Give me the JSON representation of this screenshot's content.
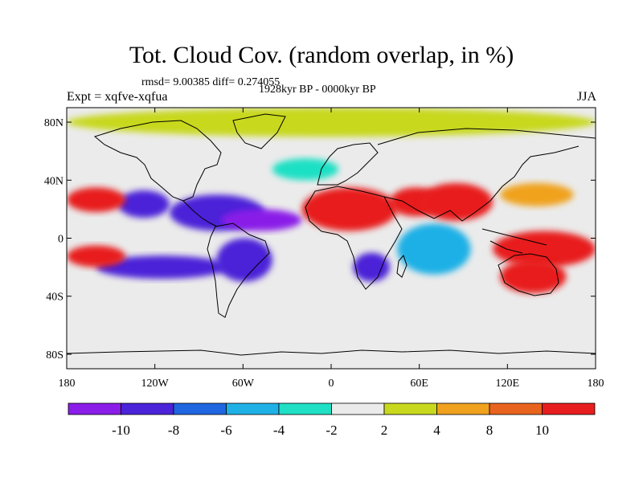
{
  "header": {
    "title": "Tot. Cloud Cov. (random overlap, in %)",
    "stats": "rmsd= 9.00385 diff= 0.274055",
    "period": "1928kyr BP - 0000kyr BP",
    "experiment": "Expt = xqfve-xqfua",
    "season": "JJA"
  },
  "map": {
    "projection": "cylindrical equidistant",
    "lon_range": [
      -180,
      180
    ],
    "lat_range": [
      -90,
      90
    ],
    "x_ticks": [
      {
        "lon": -180,
        "label": "180"
      },
      {
        "lon": -120,
        "label": "120W"
      },
      {
        "lon": -60,
        "label": "60W"
      },
      {
        "lon": 0,
        "label": "0"
      },
      {
        "lon": 60,
        "label": "60E"
      },
      {
        "lon": 120,
        "label": "120E"
      },
      {
        "lon": 180,
        "label": "180"
      }
    ],
    "y_ticks": [
      {
        "lat": 80,
        "label": "80N"
      },
      {
        "lat": 40,
        "label": "40N"
      },
      {
        "lat": 0,
        "label": "0"
      },
      {
        "lat": -40,
        "label": "40S"
      },
      {
        "lat": -80,
        "label": "80S"
      }
    ],
    "background_color": "#ebebeb",
    "fields": [
      {
        "name": "na-pacific-purple-band",
        "lon": [
          -145,
          -110
        ],
        "lat": [
          33,
          14
        ],
        "level": -10
      },
      {
        "name": "central-america-purple",
        "lon": [
          -110,
          -45
        ],
        "lat": [
          30,
          5
        ],
        "level": -10
      },
      {
        "name": "tropical-atlantic-purple",
        "lon": [
          -75,
          -20
        ],
        "lat": [
          20,
          5
        ],
        "level": -12
      },
      {
        "name": "east-pacific-purple-band",
        "lon": [
          -160,
          -70
        ],
        "lat": [
          -12,
          -28
        ],
        "level": -10
      },
      {
        "name": "south-america-purple",
        "lon": [
          -78,
          -40
        ],
        "lat": [
          0,
          -30
        ],
        "level": -10
      },
      {
        "name": "southern-africa-purple",
        "lon": [
          15,
          40
        ],
        "lat": [
          -10,
          -30
        ],
        "level": -10
      },
      {
        "name": "indian-ocean-blue",
        "lon": [
          45,
          95
        ],
        "lat": [
          10,
          -25
        ],
        "level": -5
      },
      {
        "name": "north-atlantic-cyan",
        "lon": [
          -40,
          5
        ],
        "lat": [
          55,
          40
        ],
        "level": -3
      },
      {
        "name": "north-africa-red",
        "lon": [
          -20,
          45
        ],
        "lat": [
          35,
          5
        ],
        "level": 12
      },
      {
        "name": "arabia-red",
        "lon": [
          40,
          75
        ],
        "lat": [
          35,
          15
        ],
        "level": 12
      },
      {
        "name": "india-red",
        "lon": [
          60,
          110
        ],
        "lat": [
          38,
          12
        ],
        "level": 12
      },
      {
        "name": "nw-pacific-orange",
        "lon": [
          115,
          165
        ],
        "lat": [
          38,
          22
        ],
        "level": 7
      },
      {
        "name": "west-pacific-red",
        "lon": [
          110,
          180
        ],
        "lat": [
          5,
          -20
        ],
        "level": 12
      },
      {
        "name": "australia-red",
        "lon": [
          115,
          160
        ],
        "lat": [
          -15,
          -38
        ],
        "level": 10
      },
      {
        "name": "central-pacific-red",
        "lon": [
          -180,
          -140
        ],
        "lat": [
          -5,
          -20
        ],
        "level": 12
      },
      {
        "name": "north-pacific-red",
        "lon": [
          -180,
          -140
        ],
        "lat": [
          35,
          18
        ],
        "level": 10
      },
      {
        "name": "arctic-mixed",
        "lon": [
          -180,
          180
        ],
        "lat": [
          90,
          70
        ],
        "level": 3
      },
      {
        "name": "antarctic-mixed",
        "lon": [
          -120,
          180
        ],
        "lat": [
          -70,
          -90
        ],
        "level": -2
      }
    ]
  },
  "colorbar": {
    "colors": [
      "#8a1ee8",
      "#4b23d8",
      "#1f66e0",
      "#1fb0e6",
      "#1fe0c4",
      "#ebebeb",
      "#c8d81e",
      "#f0a21e",
      "#e8641e",
      "#e81e1e"
    ],
    "labels": [
      "-10",
      "-8",
      "-6",
      "-4",
      "-2",
      "2",
      "4",
      "8",
      "10"
    ]
  }
}
